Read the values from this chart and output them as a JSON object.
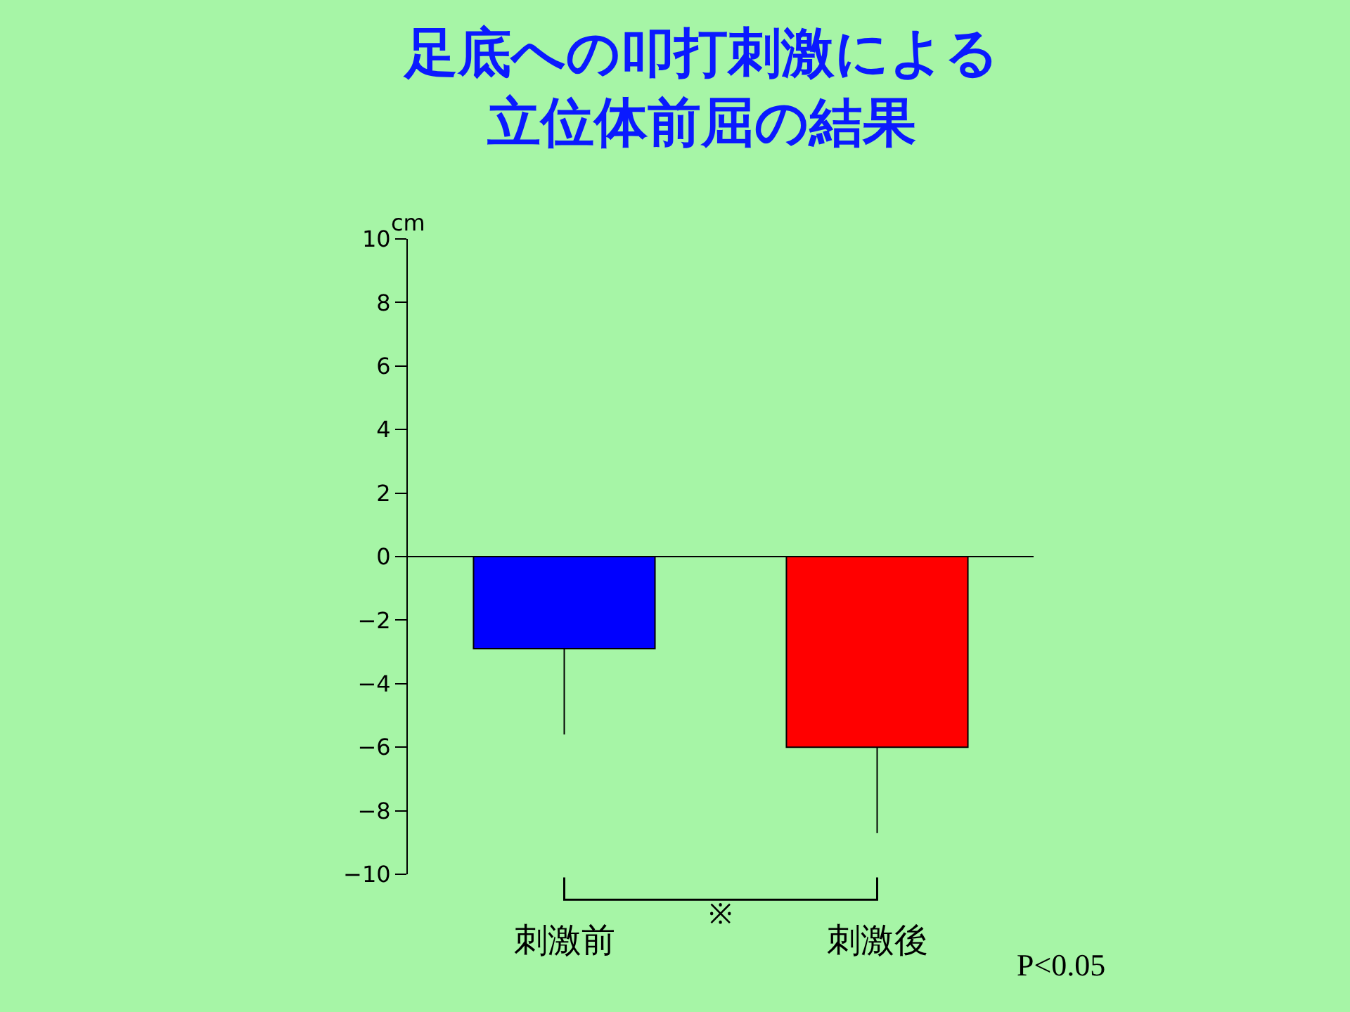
{
  "chart_data": {
    "type": "bar",
    "title": "足底への叩打刺激による",
    "subtitle": "立位体前屈の結果",
    "ylabel": "cm",
    "categories": [
      "刺激前",
      "刺激後"
    ],
    "values": [
      -2.9,
      -6.0
    ],
    "colors": [
      "#0000ff",
      "#ff0000"
    ],
    "errors": [
      [
        -5.6,
        -2.9
      ],
      [
        -8.7,
        -6.0
      ]
    ],
    "ylim": [
      -10,
      10
    ],
    "yticks": [
      -10,
      -8,
      -6,
      -4,
      -2,
      0,
      2,
      4,
      6,
      8,
      10
    ],
    "annotations": [
      "※",
      "P<0.05"
    ],
    "legend": false
  }
}
